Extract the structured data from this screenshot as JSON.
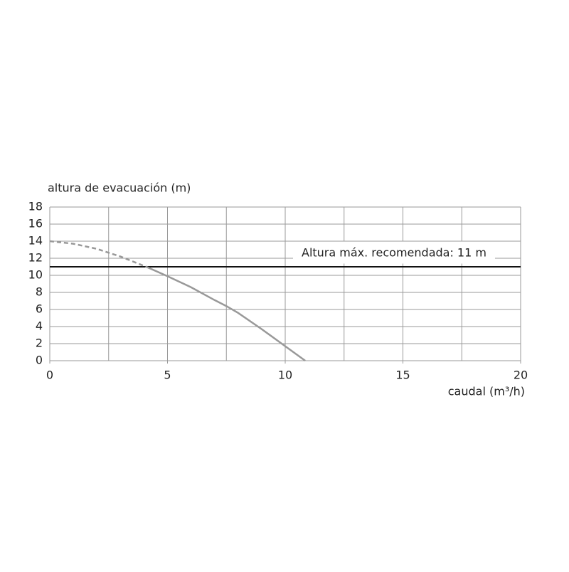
{
  "chart_data": {
    "type": "line",
    "ylabel": "altura de evacuación (m)",
    "xlabel": "caudal (m³/h)",
    "xlim": [
      0,
      20
    ],
    "xticks": [
      0,
      5,
      10,
      15,
      20
    ],
    "x_gridlines": [
      2.5,
      5,
      7.5,
      10,
      12.5,
      15,
      17.5,
      20
    ],
    "ylim": [
      0,
      18
    ],
    "yticks": [
      0,
      2,
      4,
      6,
      8,
      10,
      12,
      14,
      16,
      18
    ],
    "grid": true,
    "series": [
      {
        "color": "#999999",
        "style": "dashed",
        "x": [
          0,
          1,
          2,
          3,
          4.1
        ],
        "values": [
          14,
          13.7,
          13.1,
          12.2,
          11
        ]
      },
      {
        "color": "#999999",
        "style": "solid",
        "x": [
          4.1,
          5,
          6,
          7,
          7.5,
          8,
          9,
          10,
          10.85
        ],
        "values": [
          11,
          9.9,
          8.6,
          7.1,
          6.4,
          5.6,
          3.7,
          1.7,
          0
        ]
      }
    ],
    "reference_line": {
      "value": 11,
      "label": "Altura máx. recomendada: 11 m",
      "color": "#111111"
    }
  }
}
